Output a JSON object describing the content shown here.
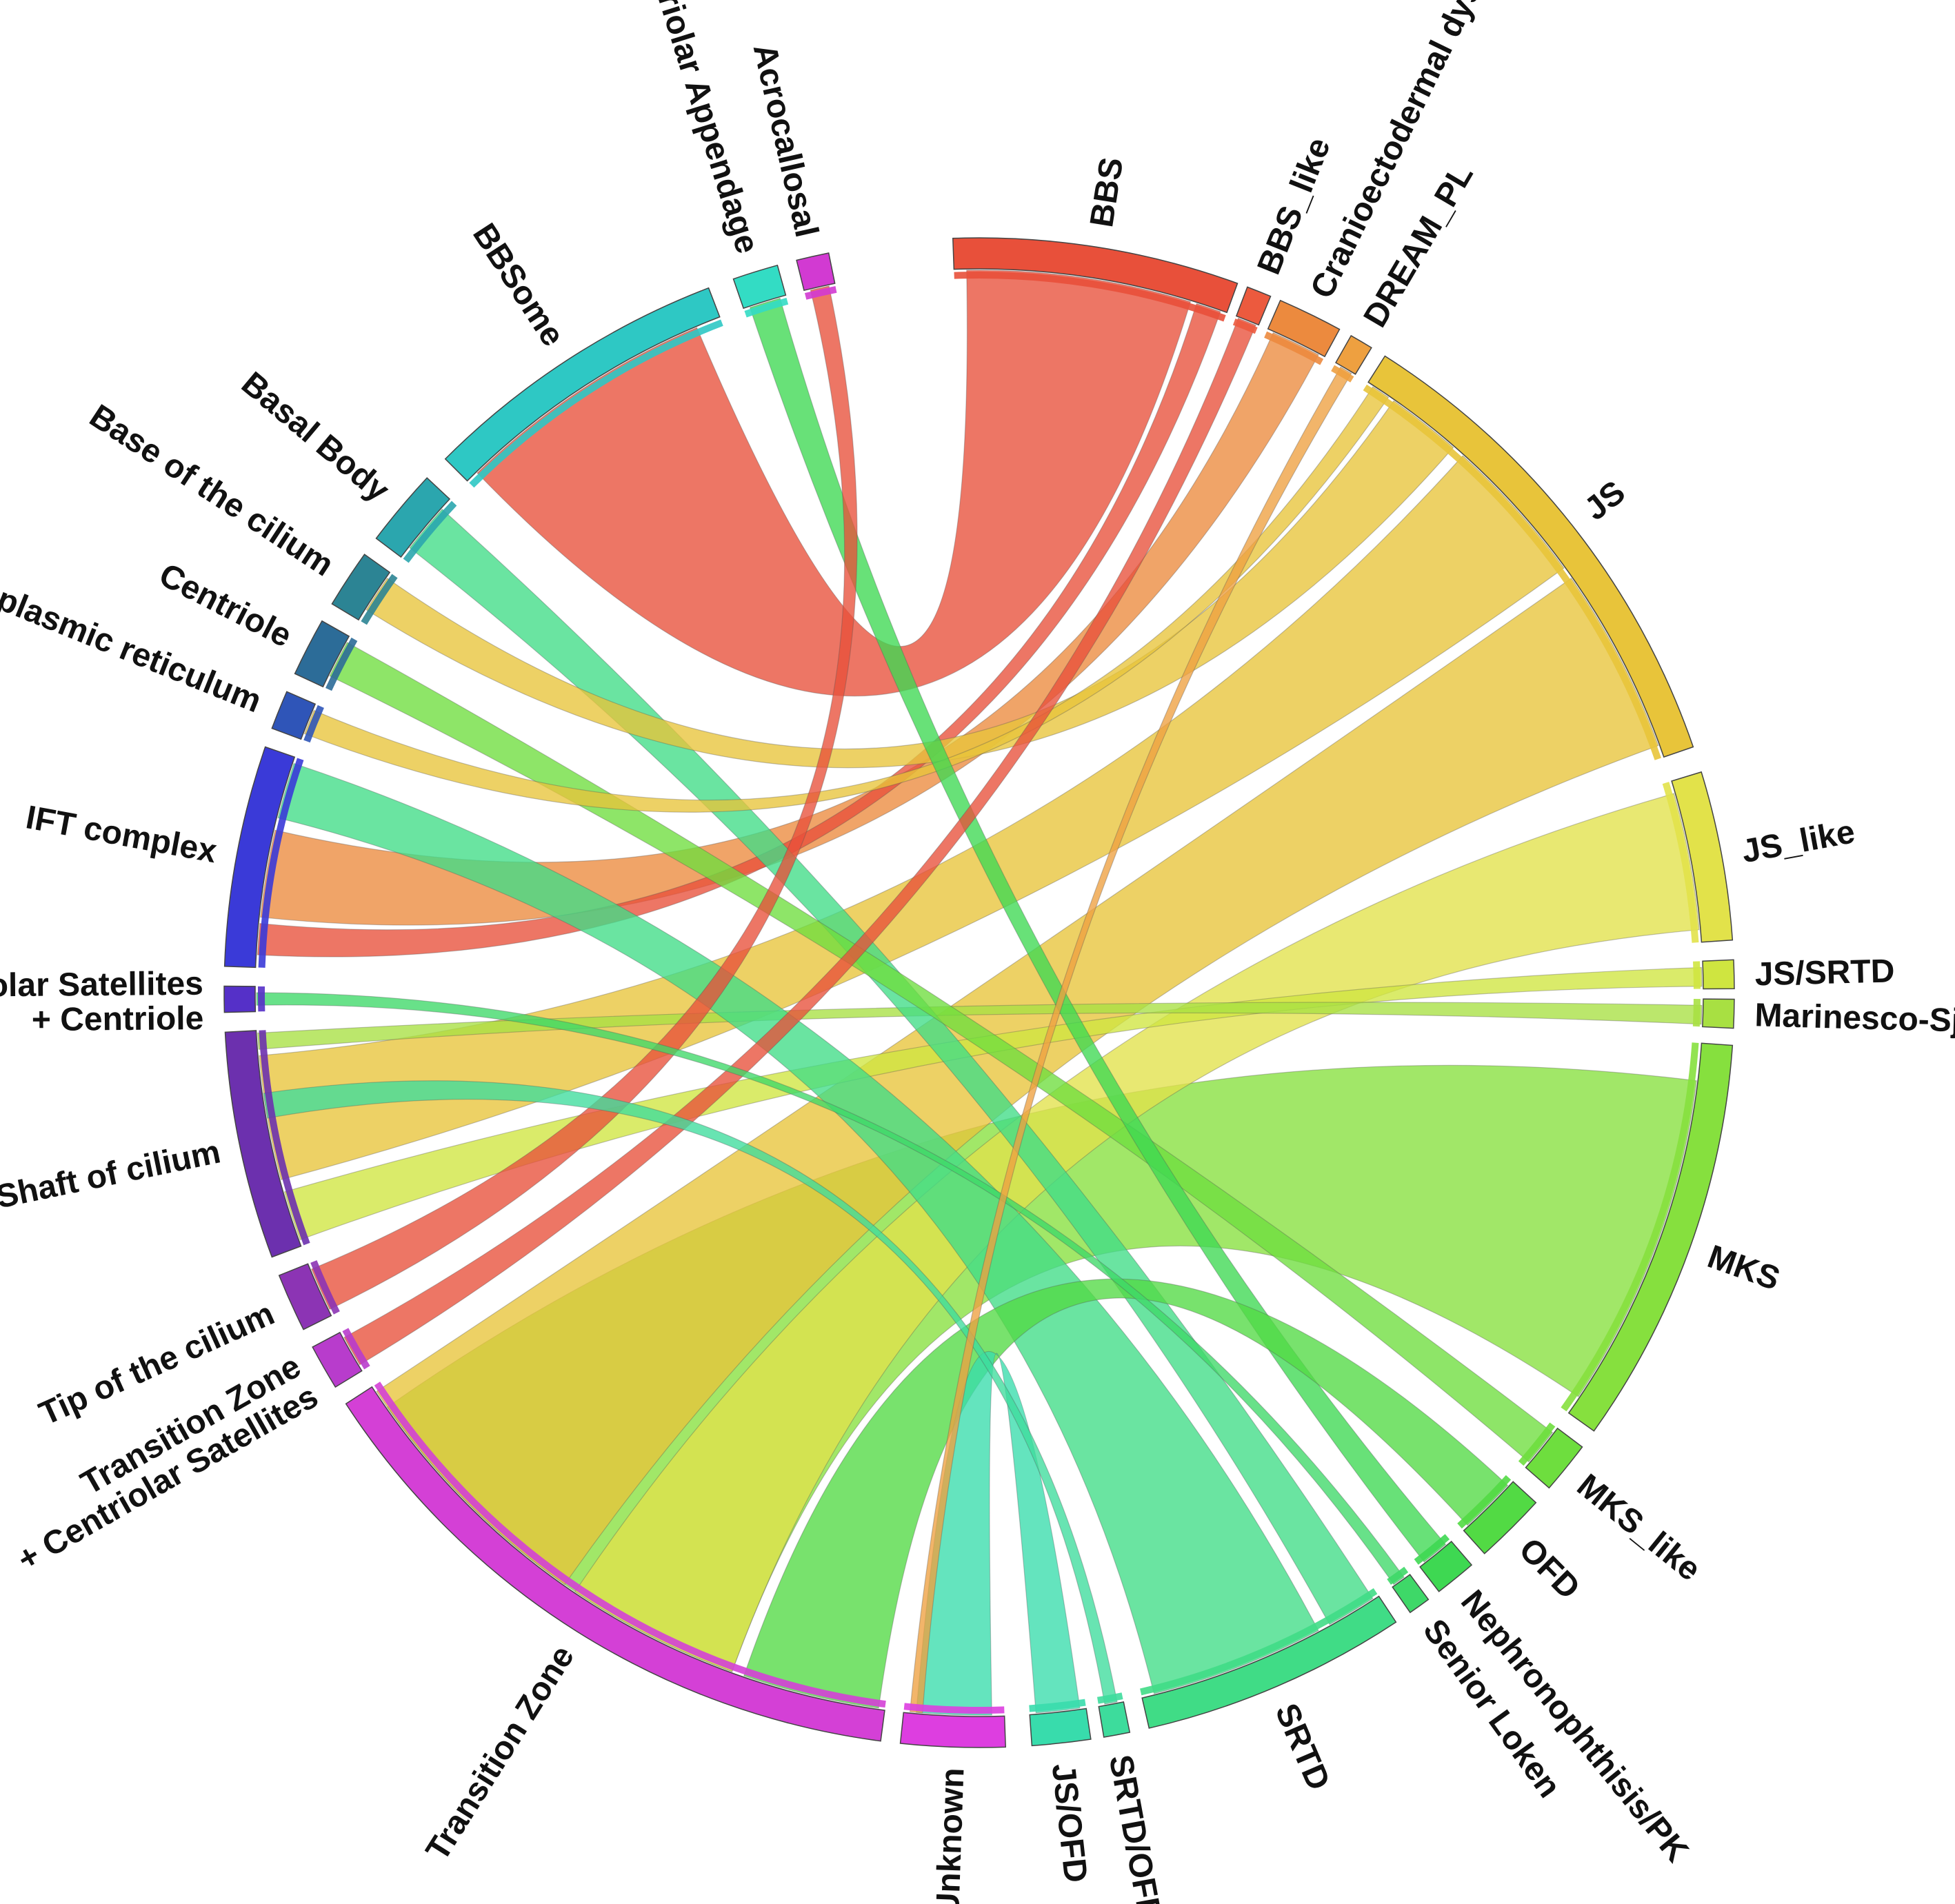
{
  "diagram": {
    "type": "chord",
    "segments": [
      {
        "id": "bbs",
        "label": "BBS",
        "color": "#e8503a",
        "a0": -2,
        "a1": 20
      },
      {
        "id": "bbs_like",
        "label": "BBS_like",
        "color": "#ec5a3e",
        "a0": 20.8,
        "a1": 22.7
      },
      {
        "id": "cranio",
        "label": "Cranioectodermal dysplasia",
        "color": "#ec8a3e",
        "a0": 23.5,
        "a1": 28.5
      },
      {
        "id": "dream",
        "label": "DREAM_PL",
        "color": "#eea040",
        "a0": 29.5,
        "a1": 31.3
      },
      {
        "id": "js",
        "label": "JS",
        "color": "#e8c43a",
        "a0": 32.5,
        "a1": 71
      },
      {
        "id": "js_like",
        "label": "JS_like",
        "color": "#e2e24a",
        "a0": 73,
        "a1": 86
      },
      {
        "id": "js_srtd",
        "label": "JS/SRTD",
        "color": "#cfe540",
        "a0": 87.5,
        "a1": 89.7
      },
      {
        "id": "marinesco",
        "label": "Marinesco-Sjogren",
        "color": "#a8e042",
        "a0": 90.5,
        "a1": 92.7
      },
      {
        "id": "mks",
        "label": "MKS",
        "color": "#86e03e",
        "a0": 94,
        "a1": 125.5
      },
      {
        "id": "mks_like",
        "label": "MKS_like",
        "color": "#6ede3e",
        "a0": 127,
        "a1": 131
      },
      {
        "id": "ofd",
        "label": "OFD",
        "color": "#52da44",
        "a0": 132.5,
        "a1": 138
      },
      {
        "id": "nephro",
        "label": "Nephronophthisis/PK",
        "color": "#3ed852",
        "a0": 139.3,
        "a1": 142.5
      },
      {
        "id": "senior",
        "label": "Senior Loken",
        "color": "#3ed868",
        "a0": 143.5,
        "a1": 145.2
      },
      {
        "id": "srtd",
        "label": "SRTD",
        "color": "#40dc86",
        "a0": 146.5,
        "a1": 167
      },
      {
        "id": "srtd_ofd",
        "label": "SRTD/OFD",
        "color": "#3ddc9c",
        "a0": 168.5,
        "a1": 170.5
      },
      {
        "id": "js_ofd",
        "label": "JS/OFD",
        "color": "#38dcac",
        "a0": 171.5,
        "a1": 176
      },
      {
        "id": "unknown",
        "label": "Unknown",
        "color": "#dd3ee0",
        "a0": 178,
        "a1": 186
      },
      {
        "id": "tz",
        "label": "Transition Zone",
        "color": "#d440d6",
        "a0": 187.5,
        "a1": 237
      },
      {
        "id": "tz_cs",
        "label": "Transition Zone\n+ Centriolar Satellites",
        "color": "#b83ccc",
        "a0": 238.5,
        "a1": 242
      },
      {
        "id": "tip",
        "label": "Tip of the cilium",
        "color": "#8c34b4",
        "a0": 243.5,
        "a1": 248
      },
      {
        "id": "shaft",
        "label": "Shaft of cilium",
        "color": "#6c30ae",
        "a0": 249.5,
        "a1": 267
      },
      {
        "id": "cs_centriole",
        "label": "Centriolar Satellites\n+ Centriole",
        "color": "#5530c8",
        "a0": 268.5,
        "a1": 270.5
      },
      {
        "id": "ift",
        "label": "IFT complex",
        "color": "#3a3ad8",
        "a0": 272,
        "a1": 289
      },
      {
        "id": "er",
        "label": "Endoplasmic reticulum",
        "color": "#2f55b8",
        "a0": 290.5,
        "a1": 293.5
      },
      {
        "id": "centriole",
        "label": "Centriole",
        "color": "#2c6c98",
        "a0": 295,
        "a1": 299.5
      },
      {
        "id": "base",
        "label": "Base of the cilium",
        "color": "#2c8494",
        "a0": 301,
        "a1": 305.5
      },
      {
        "id": "basal",
        "label": "Basal Body",
        "color": "#2ba6ae",
        "a0": 307,
        "a1": 313
      },
      {
        "id": "bbsome",
        "label": "BBSome",
        "color": "#2ec8c4",
        "a0": 315,
        "a1": 339
      },
      {
        "id": "cent_app",
        "label": "Centriolar Appendage",
        "color": "#33dcc4",
        "a0": 341,
        "a1": 344.5
      },
      {
        "id": "acro",
        "label": "Acrocallosal",
        "color": "#d23ad2",
        "a0": 346,
        "a1": 348.5
      }
    ],
    "ribbons": [
      {
        "from": "bbsome",
        "f": [
          316,
          337
        ],
        "to": "bbs",
        "t": [
          -1,
          17
        ],
        "color": "#e8503a"
      },
      {
        "from": "ift",
        "f": [
          276,
          283
        ],
        "to": "cranio",
        "t": [
          24,
          28
        ],
        "color": "#ec8a3e"
      },
      {
        "from": "ift",
        "f": [
          273,
          275.5
        ],
        "to": "bbs",
        "t": [
          17.5,
          19.5
        ],
        "color": "#e8503a"
      },
      {
        "from": "tz",
        "f": [
          200,
          235
        ],
        "to": "mks",
        "t": [
          97,
          124
        ],
        "color": "#86e03e"
      },
      {
        "from": "tz",
        "f": [
          215,
          236.5
        ],
        "to": "js",
        "t": [
          55,
          70
        ],
        "color": "#e8c43a"
      },
      {
        "from": "tz",
        "f": [
          200,
          214
        ],
        "to": "js_like",
        "t": [
          74,
          85
        ],
        "color": "#e2e24a"
      },
      {
        "from": "shaft",
        "f": [
          255,
          265
        ],
        "to": "js",
        "t": [
          42,
          54
        ],
        "color": "#e8c43a"
      },
      {
        "from": "shaft",
        "f": [
          250,
          254
        ],
        "to": "js_srtd",
        "t": [
          88,
          89.5
        ],
        "color": "#cfe540"
      },
      {
        "from": "shaft",
        "f": [
          265.5,
          266.8
        ],
        "to": "marinesco",
        "t": [
          91,
          92.5
        ],
        "color": "#a8e042"
      },
      {
        "from": "ift",
        "f": [
          284,
          288.5
        ],
        "to": "srtd",
        "t": [
          152,
          166
        ],
        "color": "#40dc86"
      },
      {
        "from": "basal",
        "f": [
          308,
          312
        ],
        "to": "srtd",
        "t": [
          147,
          151
        ],
        "color": "#40dc86"
      },
      {
        "from": "base",
        "f": [
          302,
          305
        ],
        "to": "js",
        "t": [
          35,
          41
        ],
        "color": "#e8c43a"
      },
      {
        "from": "centriole",
        "f": [
          296,
          299
        ],
        "to": "mks_like",
        "t": [
          127.5,
          130.5
        ],
        "color": "#6ede3e"
      },
      {
        "from": "er",
        "f": [
          291,
          293
        ],
        "to": "js",
        "t": [
          33,
          34.5
        ],
        "color": "#e8c43a"
      },
      {
        "from": "cent_app",
        "f": [
          341.5,
          344
        ],
        "to": "nephro",
        "t": [
          139.8,
          142
        ],
        "color": "#3ed852"
      },
      {
        "from": "acro",
        "f": [
          346.5,
          348
        ],
        "to": "tip",
        "t": [
          244,
          247.5
        ],
        "color": "#e8503a"
      },
      {
        "from": "tz_cs",
        "f": [
          239,
          241.5
        ],
        "to": "bbs_like",
        "t": [
          21,
          22.5
        ],
        "color": "#e8503a"
      },
      {
        "from": "tz",
        "f": [
          188,
          199
        ],
        "to": "ofd",
        "t": [
          133,
          137.5
        ],
        "color": "#52da44"
      },
      {
        "from": "unknown",
        "f": [
          179,
          185
        ],
        "to": "js_ofd",
        "t": [
          172,
          175.5
        ],
        "color": "#38dcac"
      },
      {
        "from": "srtd_ofd",
        "f": [
          169,
          170
        ],
        "to": "shaft",
        "t": [
          260,
          262
        ],
        "color": "#3ddc9c"
      },
      {
        "from": "senior",
        "f": [
          144,
          145
        ],
        "to": "cs_centriole",
        "t": [
          269,
          270
        ],
        "color": "#3ed868"
      },
      {
        "from": "dream",
        "f": [
          30,
          31
        ],
        "to": "unknown",
        "t": [
          184.5,
          185.5
        ],
        "color": "#eea040"
      }
    ]
  }
}
